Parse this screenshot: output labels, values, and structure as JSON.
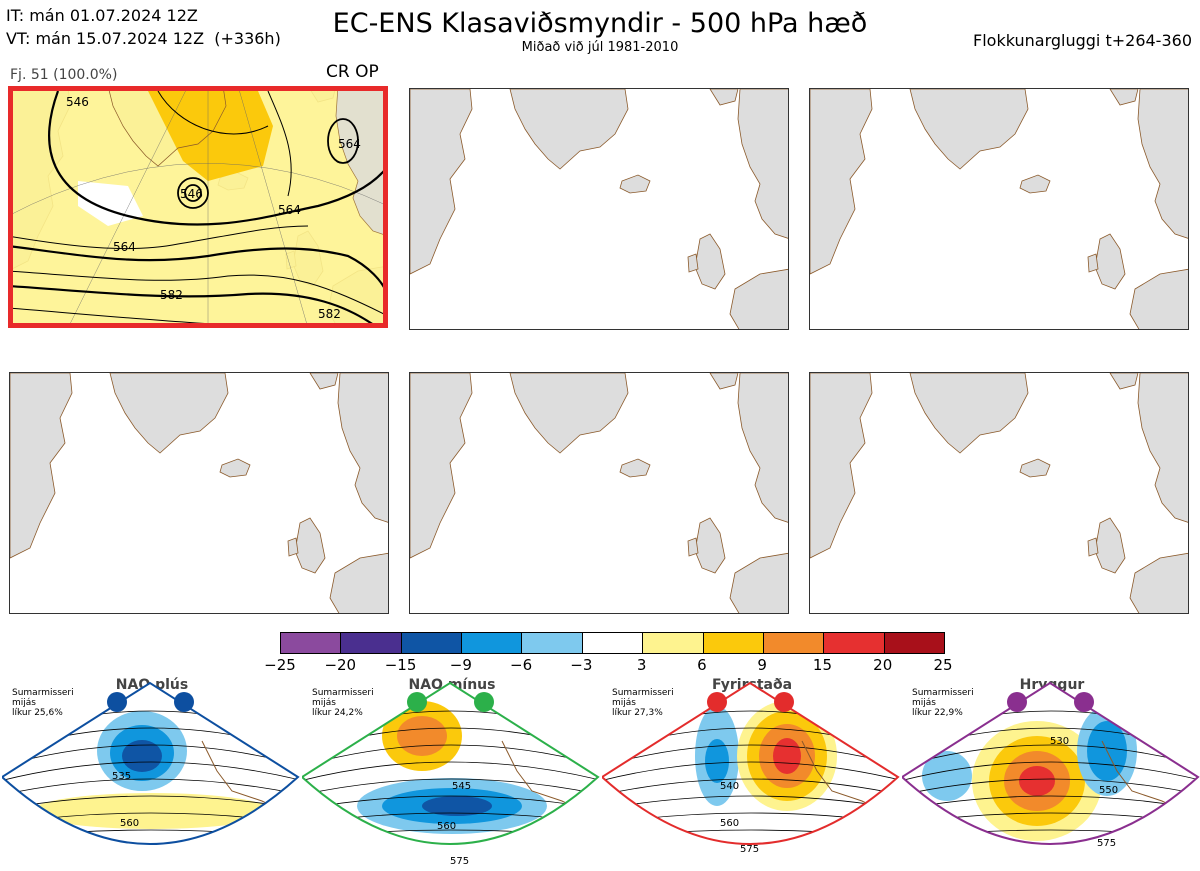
{
  "header": {
    "it_line": "IT: mán 01.07.2024 12Z",
    "vt_line": "VT: mán 15.07.2024 12Z  (+336h)",
    "title": "EC-ENS Klasaviðsmyndir - 500 hPa hæð",
    "subtitle": "Miðað við júl 1981-2010",
    "window": "Flokkunargluggi t+264-360"
  },
  "cluster": {
    "label": "Fj. 51 (100.0%)",
    "tag": "CR OP",
    "contour_labels": [
      "546",
      "546",
      "564",
      "564",
      "564",
      "582",
      "582"
    ]
  },
  "colorbar": {
    "ticks": [
      "−25",
      "−20",
      "−15",
      "−9",
      "−6",
      "−3",
      "3",
      "6",
      "9",
      "15",
      "20",
      "25"
    ],
    "colors": [
      "#8b4a9e",
      "#4a2f8f",
      "#0f55a5",
      "#1096dd",
      "#7ec9ee",
      "#ffffff",
      "#fef38f",
      "#fbc90c",
      "#f28a2b",
      "#e63030",
      "#a8101a"
    ]
  },
  "regimes": [
    {
      "name": "NAO plús",
      "note": "Sumarmisseri\nmijás\nlíkur 25,6%",
      "color": "#0d4fa0",
      "labels": [
        "535",
        "560"
      ]
    },
    {
      "name": "NAO mínus",
      "note": "Sumarmisseri\nmijás\nlíkur 24,2%",
      "color": "#2cb04a",
      "labels": [
        "545",
        "560",
        "575"
      ]
    },
    {
      "name": "Fyrirstaða",
      "note": "Sumarmisseri\nmijás\nlíkur 27,3%",
      "color": "#e32c2c",
      "labels": [
        "540",
        "560",
        "575"
      ]
    },
    {
      "name": "Hryggur",
      "note": "Sumarmisseri\nmijás\nlíkur 22,9%",
      "color": "#8a2f8f",
      "labels": [
        "530",
        "550",
        "575"
      ]
    }
  ],
  "colors": {
    "land": "#dddddd",
    "coast": "#8b5a2b",
    "selected_border": "#e82a2a"
  }
}
